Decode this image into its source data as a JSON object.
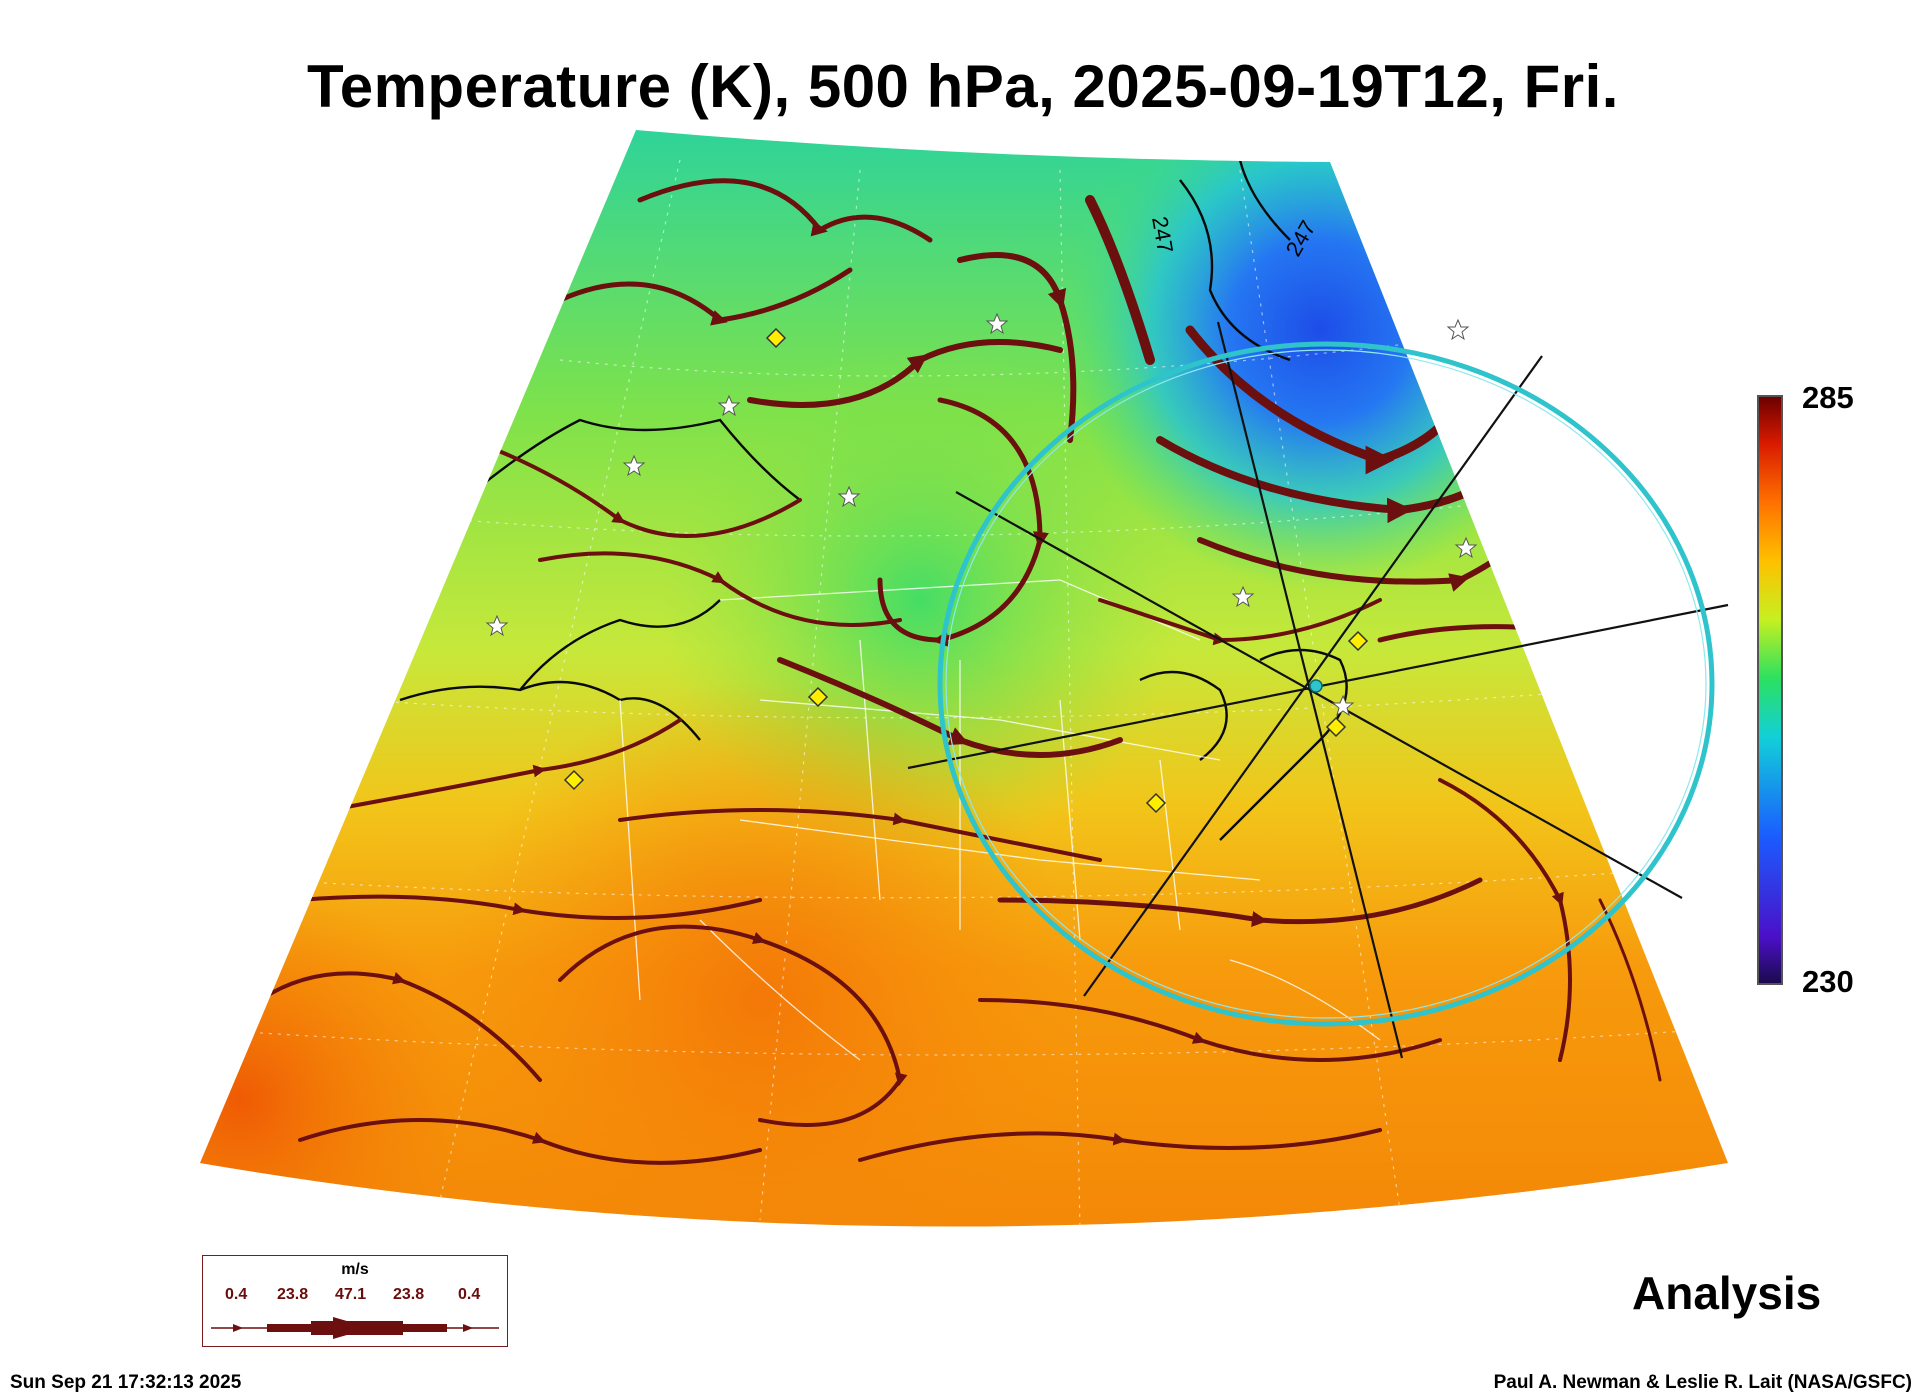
{
  "title": "Temperature (K), 500 hPa, 2025-09-19T12, Fri.",
  "colorbar": {
    "max": "285",
    "min": "230"
  },
  "contour_labels": [
    "247",
    "247"
  ],
  "wind_legend": {
    "unit": "m/s",
    "values": [
      "0.4",
      "23.8",
      "47.1",
      "23.8",
      "0.4"
    ]
  },
  "analysis_label": "Analysis",
  "timestamp": "Sun Sep 21 17:32:13 2025",
  "credit": "Paul A. Newman & Leslie R. Lait (NASA/GSFC)",
  "colors": {
    "streamline": "#6b0f0f",
    "ring": "#2fc4cc",
    "marker": "#ffee00"
  }
}
